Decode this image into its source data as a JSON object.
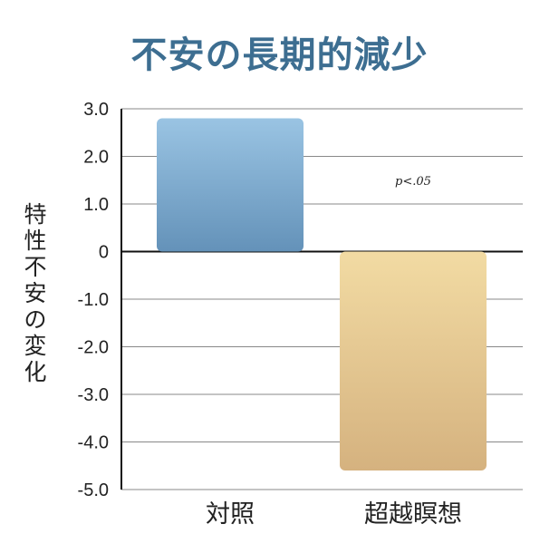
{
  "chart_data": {
    "type": "bar",
    "title": "不安の長期的減少",
    "ylabel": "特性不安の変化",
    "xlabel": "",
    "categories": [
      "対照",
      "超越瞑想"
    ],
    "values": [
      2.8,
      -4.6
    ],
    "ylim": [
      -5.0,
      3.0
    ],
    "yticks": [
      "3.0",
      "2.0",
      "1.0",
      "0",
      "-1.0",
      "-2.0",
      "-3.0",
      "-4.0",
      "-5.0"
    ],
    "annotations": [
      {
        "text": "p<.05",
        "category": "超越瞑想",
        "y": 1.5
      }
    ],
    "grid": true,
    "legend": "none",
    "colors": {
      "control_top": "#9ac4e3",
      "control_bottom": "#6492b9",
      "tm_top": "#f2dba3",
      "tm_bottom": "#d5b27f",
      "title": "#3d6e91",
      "grid": "#888888"
    }
  }
}
